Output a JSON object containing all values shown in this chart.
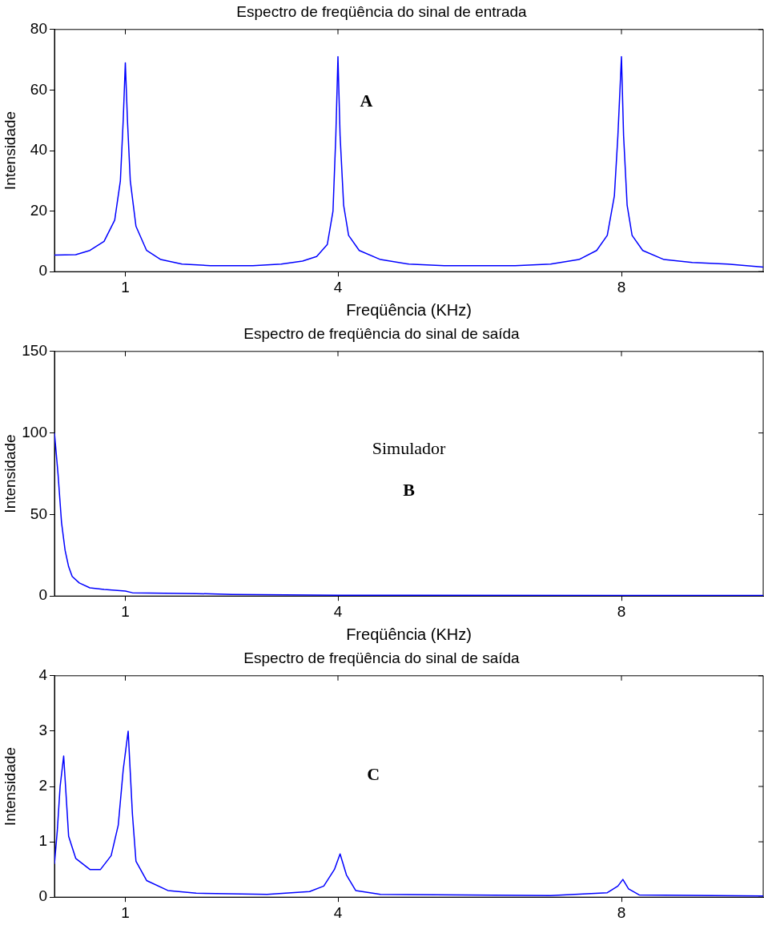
{
  "chart_data": [
    {
      "type": "line",
      "title": "Espectro de freqüência do sinal de entrada",
      "xlabel": "Freqüência (KHz)",
      "ylabel": "Intensidade",
      "xlim": [
        0,
        10
      ],
      "xticks": [
        1,
        4,
        8
      ],
      "ylim": [
        0,
        80
      ],
      "yticks": [
        0,
        20,
        40,
        60,
        80
      ],
      "grid": false,
      "legend": false,
      "annotations": [
        "A"
      ],
      "series": [
        {
          "color": "#0000ff",
          "x": [
            0,
            0.3,
            0.5,
            0.7,
            0.85,
            0.93,
            0.97,
            1.0,
            1.03,
            1.07,
            1.15,
            1.3,
            1.5,
            1.8,
            2.2,
            2.8,
            3.2,
            3.5,
            3.7,
            3.85,
            3.93,
            3.97,
            4.0,
            4.03,
            4.08,
            4.15,
            4.3,
            4.6,
            5,
            5.5,
            6.5,
            7,
            7.4,
            7.65,
            7.8,
            7.9,
            7.95,
            8.0,
            8.03,
            8.08,
            8.15,
            8.3,
            8.6,
            9,
            9.5,
            10
          ],
          "values": [
            5.5,
            5.6,
            7,
            10,
            17,
            30,
            50,
            69,
            50,
            30,
            15,
            7,
            4,
            2.5,
            2,
            2,
            2.5,
            3.5,
            5,
            9,
            20,
            45,
            71,
            45,
            22,
            12,
            7,
            4,
            2.5,
            2,
            2,
            2.5,
            4,
            7,
            12,
            25,
            45,
            71,
            45,
            22,
            12,
            7,
            4,
            3,
            2.5,
            1.5
          ]
        }
      ]
    },
    {
      "type": "line",
      "title": "Espectro de freqüência do sinal de saída",
      "xlabel": "Freqüência (KHz)",
      "ylabel": "Intensidade",
      "xlim": [
        0,
        10
      ],
      "xticks": [
        1,
        4,
        8
      ],
      "ylim": [
        0,
        150
      ],
      "yticks": [
        0,
        50,
        100,
        150
      ],
      "grid": false,
      "legend": false,
      "annotations": [
        "Simulador",
        "B"
      ],
      "series": [
        {
          "color": "#0000ff",
          "x": [
            0,
            0.05,
            0.1,
            0.15,
            0.2,
            0.25,
            0.35,
            0.5,
            0.7,
            1.0,
            1.1,
            2,
            2.5,
            4,
            10
          ],
          "values": [
            100,
            75,
            45,
            28,
            18,
            12,
            8,
            5,
            4,
            3,
            2,
            1.5,
            1,
            0.5,
            0.3
          ]
        }
      ]
    },
    {
      "type": "line",
      "title": "Espectro de freqüência do sinal de saída",
      "ylabel": "Intensidade",
      "xlim": [
        0,
        10
      ],
      "xticks": [
        1,
        4,
        8
      ],
      "ylim": [
        0,
        4
      ],
      "yticks": [
        0,
        1,
        2,
        3,
        4
      ],
      "grid": false,
      "legend": false,
      "annotations": [
        "C"
      ],
      "series": [
        {
          "color": "#0000ff",
          "x": [
            0,
            0.04,
            0.08,
            0.13,
            0.2,
            0.3,
            0.5,
            0.65,
            0.8,
            0.9,
            0.97,
            1.04,
            1.1,
            1.15,
            1.3,
            1.6,
            2,
            3,
            3.6,
            3.8,
            3.95,
            4.03,
            4.12,
            4.25,
            4.6,
            7,
            7.8,
            7.95,
            8.02,
            8.1,
            8.25,
            10
          ],
          "values": [
            0.6,
            1.2,
            2.0,
            2.55,
            1.1,
            0.7,
            0.5,
            0.5,
            0.75,
            1.3,
            2.3,
            3.0,
            1.5,
            0.65,
            0.3,
            0.12,
            0.07,
            0.05,
            0.1,
            0.2,
            0.5,
            0.78,
            0.4,
            0.12,
            0.05,
            0.03,
            0.08,
            0.2,
            0.32,
            0.15,
            0.04,
            0.02
          ]
        }
      ]
    }
  ]
}
